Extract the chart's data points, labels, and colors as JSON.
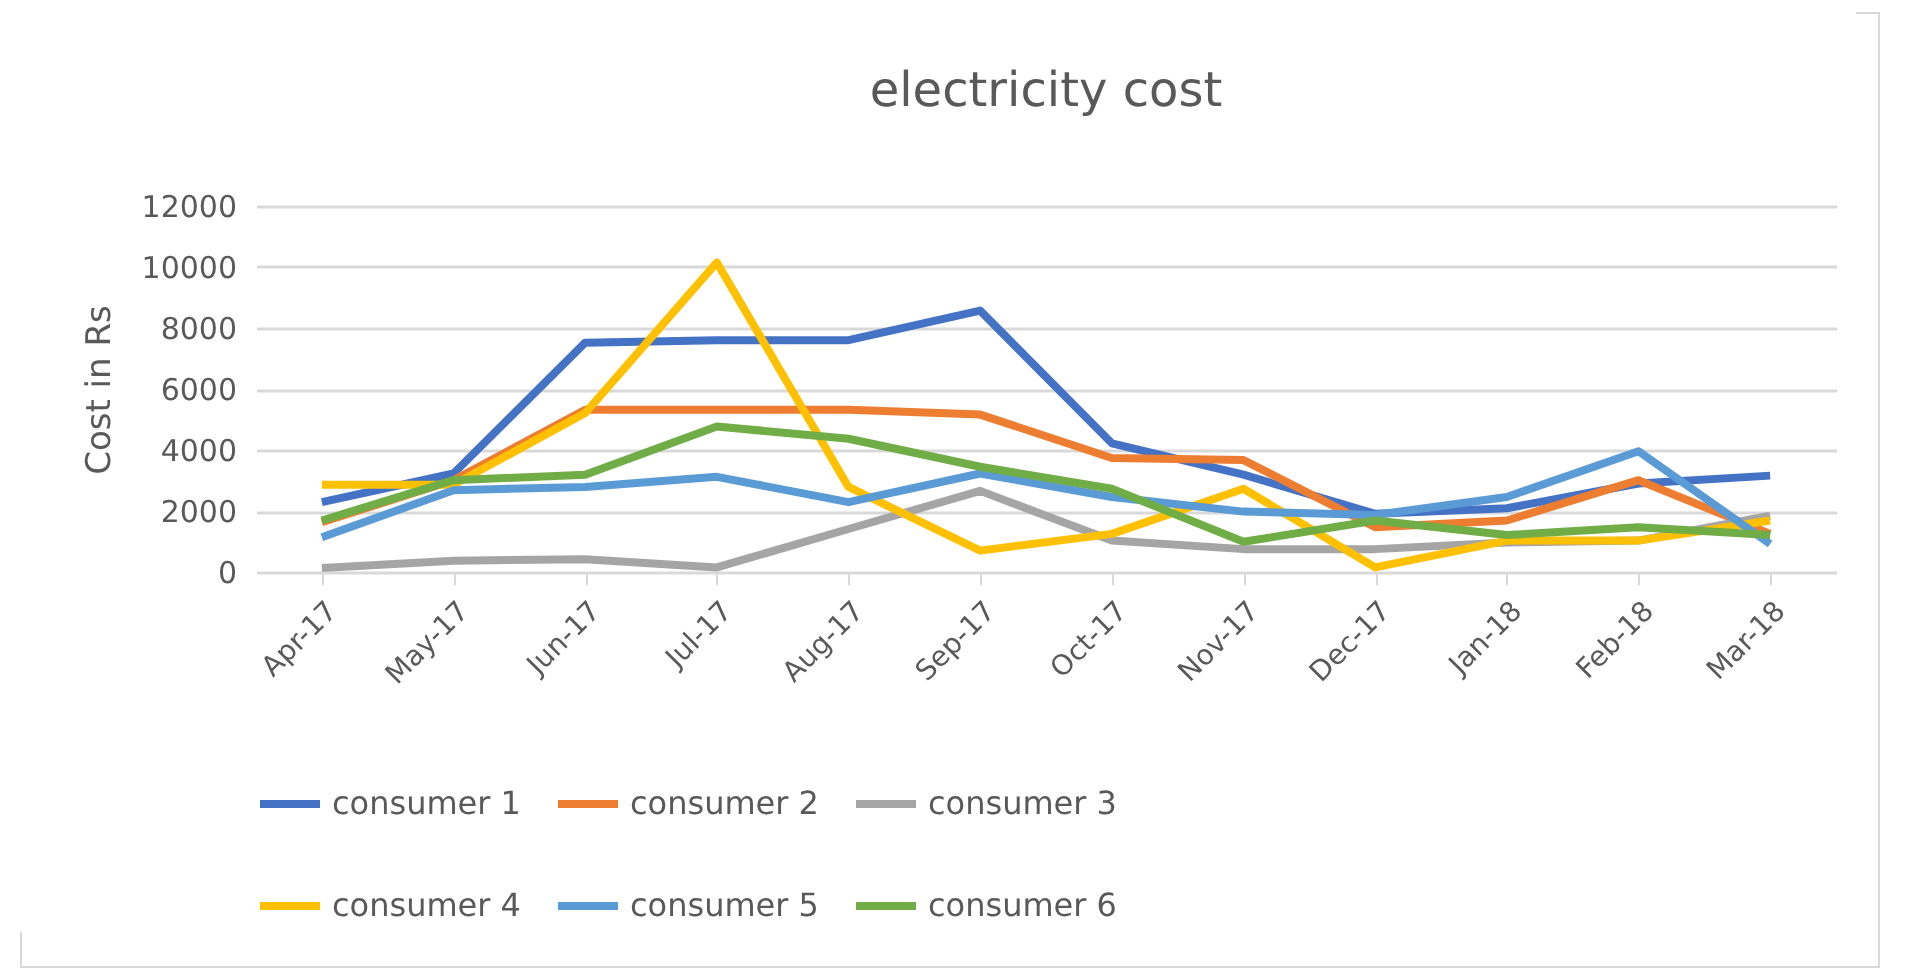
{
  "chart_data": {
    "type": "line",
    "title": "electricity cost",
    "ylabel": "Cost in Rs",
    "categories": [
      "Apr-17",
      "May-17",
      "Jun-17",
      "Jul-17",
      "Aug-17",
      "Sep-17",
      "Oct-17",
      "Nov-17",
      "Dec-17",
      "Jan-18",
      "Feb-18",
      "Mar-18"
    ],
    "series": [
      {
        "name": "consumer 1",
        "color": "#4472c4",
        "values": [
          2290,
          3230,
          7520,
          7600,
          7600,
          8570,
          4220,
          3190,
          1910,
          2090,
          2900,
          3160
        ]
      },
      {
        "name": "consumer 2",
        "color": "#ed7d31",
        "values": [
          1630,
          3010,
          5320,
          5320,
          5320,
          5160,
          3740,
          3670,
          1470,
          1690,
          3010,
          1250
        ]
      },
      {
        "name": "consumer 3",
        "color": "#a5a5a5",
        "values": [
          130,
          370,
          420,
          150,
          1410,
          2660,
          1030,
          750,
          750,
          970,
          1030,
          1850
        ]
      },
      {
        "name": "consumer 4",
        "color": "#ffc000",
        "values": [
          2860,
          2860,
          5210,
          10150,
          2790,
          700,
          1250,
          2730,
          150,
          1030,
          1030,
          1690
        ]
      },
      {
        "name": "consumer 5",
        "color": "#5b9bd5",
        "values": [
          1140,
          2680,
          2790,
          3120,
          2290,
          3230,
          2460,
          1980,
          1870,
          2460,
          3960,
          920
        ]
      },
      {
        "name": "consumer 6",
        "color": "#70ad47",
        "values": [
          1690,
          3010,
          3190,
          4770,
          4370,
          3450,
          2730,
          990,
          1690,
          1210,
          1470,
          1210
        ]
      }
    ],
    "ylim": [
      0,
      12000
    ],
    "yticks": [
      0,
      2000,
      4000,
      6000,
      8000,
      10000,
      12000
    ],
    "grid": "y",
    "legend": "bottom",
    "marker": "none",
    "line_style": "solid"
  }
}
